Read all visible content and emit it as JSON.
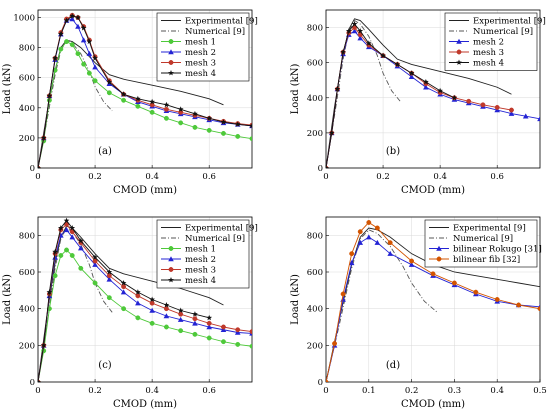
{
  "chart_data": [
    {
      "type": "line",
      "panel_label": "(a)",
      "xlabel": "CMOD (mm)",
      "ylabel": "Load (kN)",
      "xlim": [
        0,
        0.75
      ],
      "ylim": [
        0,
        1050
      ],
      "xticks": [
        "0",
        "0.2",
        "0.4",
        "0.6"
      ],
      "xtick_values": [
        0,
        0.2,
        0.4,
        0.6
      ],
      "yticks": [
        "0",
        "200",
        "400",
        "600",
        "800",
        "1000"
      ],
      "ytick_values": [
        0,
        200,
        400,
        600,
        800,
        1000
      ],
      "grid": true,
      "legend_position": "top-right",
      "series": [
        {
          "name": "Experimental [9]",
          "color": "#222222",
          "dash": "solid",
          "marker": "none",
          "x": [
            0,
            0.03,
            0.06,
            0.08,
            0.1,
            0.12,
            0.15,
            0.2,
            0.25,
            0.3,
            0.4,
            0.5,
            0.6,
            0.65
          ],
          "y": [
            0,
            350,
            650,
            800,
            850,
            840,
            800,
            700,
            620,
            590,
            550,
            510,
            460,
            420
          ]
        },
        {
          "name": "Numerical [9]",
          "color": "#555555",
          "dash": "dashdot",
          "marker": "none",
          "x": [
            0,
            0.03,
            0.06,
            0.08,
            0.1,
            0.12,
            0.15,
            0.18,
            0.2,
            0.23,
            0.26
          ],
          "y": [
            0,
            300,
            620,
            780,
            850,
            830,
            760,
            640,
            540,
            440,
            380
          ]
        },
        {
          "name": "mesh 1",
          "color": "#4ec93a",
          "dash": "solid",
          "marker": "circle",
          "x": [
            0,
            0.02,
            0.04,
            0.06,
            0.08,
            0.1,
            0.12,
            0.14,
            0.16,
            0.18,
            0.2,
            0.25,
            0.3,
            0.35,
            0.4,
            0.45,
            0.5,
            0.55,
            0.6,
            0.65,
            0.7,
            0.75
          ],
          "y": [
            0,
            180,
            450,
            650,
            790,
            840,
            820,
            760,
            690,
            630,
            580,
            500,
            450,
            410,
            370,
            330,
            300,
            270,
            250,
            230,
            210,
            195
          ]
        },
        {
          "name": "mesh 2",
          "color": "#2323d4",
          "dash": "solid",
          "marker": "triangle",
          "x": [
            0,
            0.02,
            0.04,
            0.06,
            0.08,
            0.1,
            0.12,
            0.14,
            0.16,
            0.18,
            0.2,
            0.25,
            0.3,
            0.35,
            0.4,
            0.45,
            0.5,
            0.55,
            0.6,
            0.65,
            0.7,
            0.75
          ],
          "y": [
            0,
            200,
            480,
            720,
            890,
            980,
            990,
            940,
            850,
            760,
            670,
            560,
            490,
            440,
            410,
            380,
            360,
            340,
            320,
            300,
            290,
            280
          ]
        },
        {
          "name": "mesh 3",
          "color": "#c0392b",
          "dash": "solid",
          "marker": "circle",
          "x": [
            0,
            0.02,
            0.04,
            0.06,
            0.08,
            0.1,
            0.12,
            0.14,
            0.16,
            0.18,
            0.2,
            0.25,
            0.3,
            0.35,
            0.4,
            0.45,
            0.5,
            0.55,
            0.6,
            0.65,
            0.7,
            0.75
          ],
          "y": [
            0,
            200,
            480,
            730,
            900,
            990,
            1015,
            1000,
            940,
            850,
            740,
            580,
            490,
            450,
            420,
            390,
            370,
            350,
            330,
            310,
            295,
            285
          ]
        },
        {
          "name": "mesh 4",
          "color": "#111111",
          "dash": "solid",
          "marker": "star",
          "x": [
            0,
            0.02,
            0.04,
            0.06,
            0.08,
            0.1,
            0.12,
            0.14,
            0.16,
            0.18,
            0.2,
            0.25,
            0.3,
            0.35,
            0.4,
            0.45,
            0.5,
            0.55,
            0.6,
            0.65,
            0.7,
            0.75
          ],
          "y": [
            0,
            200,
            480,
            730,
            890,
            980,
            1010,
            1000,
            930,
            840,
            730,
            570,
            490,
            460,
            440,
            420,
            390,
            360,
            330,
            305,
            290,
            280
          ]
        }
      ]
    },
    {
      "type": "line",
      "panel_label": "(b)",
      "xlabel": "CMOD (mm)",
      "ylabel": "Load (kN)",
      "xlim": [
        0,
        0.75
      ],
      "ylim": [
        0,
        900
      ],
      "xticks": [
        "0",
        "0.2",
        "0.4",
        "0.6"
      ],
      "xtick_values": [
        0,
        0.2,
        0.4,
        0.6
      ],
      "yticks": [
        "0",
        "200",
        "400",
        "600",
        "800"
      ],
      "ytick_values": [
        0,
        200,
        400,
        600,
        800
      ],
      "grid": true,
      "legend_position": "top-right",
      "series": [
        {
          "name": "Experimental [9]",
          "color": "#222222",
          "dash": "solid",
          "marker": "none",
          "x": [
            0,
            0.03,
            0.06,
            0.08,
            0.1,
            0.12,
            0.15,
            0.2,
            0.25,
            0.3,
            0.4,
            0.5,
            0.6,
            0.65
          ],
          "y": [
            0,
            350,
            650,
            790,
            850,
            840,
            790,
            700,
            620,
            590,
            550,
            510,
            460,
            420
          ]
        },
        {
          "name": "Numerical [9]",
          "color": "#555555",
          "dash": "dashdot",
          "marker": "none",
          "x": [
            0,
            0.03,
            0.06,
            0.08,
            0.1,
            0.12,
            0.15,
            0.18,
            0.2,
            0.23,
            0.26
          ],
          "y": [
            0,
            300,
            620,
            780,
            840,
            820,
            750,
            640,
            540,
            440,
            380
          ]
        },
        {
          "name": "mesh 2",
          "color": "#2323d4",
          "dash": "solid",
          "marker": "triangle",
          "x": [
            0,
            0.02,
            0.04,
            0.06,
            0.08,
            0.1,
            0.12,
            0.15,
            0.2,
            0.25,
            0.3,
            0.35,
            0.4,
            0.45,
            0.5,
            0.55,
            0.6,
            0.65,
            0.7,
            0.75
          ],
          "y": [
            0,
            200,
            450,
            650,
            760,
            780,
            740,
            690,
            640,
            580,
            520,
            460,
            420,
            390,
            370,
            350,
            330,
            310,
            295,
            280
          ]
        },
        {
          "name": "mesh 3",
          "color": "#c0392b",
          "dash": "solid",
          "marker": "circle",
          "x": [
            0,
            0.02,
            0.04,
            0.06,
            0.08,
            0.1,
            0.12,
            0.15,
            0.2,
            0.25,
            0.3,
            0.35,
            0.4,
            0.45,
            0.5,
            0.55,
            0.6,
            0.65
          ],
          "y": [
            0,
            200,
            450,
            660,
            770,
            800,
            760,
            700,
            640,
            590,
            540,
            480,
            430,
            400,
            380,
            360,
            345,
            330
          ]
        },
        {
          "name": "mesh 4",
          "color": "#111111",
          "dash": "solid",
          "marker": "star",
          "x": [
            0,
            0.02,
            0.04,
            0.06,
            0.08,
            0.1,
            0.12,
            0.15,
            0.2,
            0.25,
            0.3,
            0.35,
            0.4,
            0.45
          ],
          "y": [
            0,
            200,
            450,
            660,
            780,
            820,
            780,
            710,
            640,
            590,
            540,
            490,
            440,
            400
          ]
        }
      ]
    },
    {
      "type": "line",
      "panel_label": "(c)",
      "xlabel": "CMOD (mm)",
      "ylabel": "Load (kN)",
      "xlim": [
        0,
        0.75
      ],
      "ylim": [
        0,
        900
      ],
      "xticks": [
        "0",
        "0.2",
        "0.4",
        "0.6"
      ],
      "xtick_values": [
        0,
        0.2,
        0.4,
        0.6
      ],
      "yticks": [
        "0",
        "200",
        "400",
        "600",
        "800"
      ],
      "ytick_values": [
        0,
        200,
        400,
        600,
        800
      ],
      "grid": true,
      "legend_position": "top-right",
      "series": [
        {
          "name": "Experimental [9]",
          "color": "#222222",
          "dash": "solid",
          "marker": "none",
          "x": [
            0,
            0.03,
            0.06,
            0.08,
            0.1,
            0.12,
            0.15,
            0.2,
            0.25,
            0.3,
            0.4,
            0.5,
            0.6,
            0.65
          ],
          "y": [
            0,
            350,
            650,
            790,
            850,
            840,
            790,
            700,
            620,
            590,
            550,
            510,
            460,
            420
          ]
        },
        {
          "name": "Numerical [9]",
          "color": "#555555",
          "dash": "dashdot",
          "marker": "none",
          "x": [
            0,
            0.03,
            0.06,
            0.08,
            0.1,
            0.12,
            0.15,
            0.18,
            0.2,
            0.23,
            0.26
          ],
          "y": [
            0,
            300,
            620,
            780,
            840,
            820,
            750,
            640,
            540,
            440,
            380
          ]
        },
        {
          "name": "mesh 1",
          "color": "#4ec93a",
          "dash": "solid",
          "marker": "circle",
          "x": [
            0,
            0.02,
            0.04,
            0.06,
            0.08,
            0.1,
            0.12,
            0.15,
            0.2,
            0.25,
            0.3,
            0.35,
            0.4,
            0.45,
            0.5,
            0.55,
            0.6,
            0.65,
            0.7,
            0.75
          ],
          "y": [
            0,
            170,
            400,
            580,
            690,
            720,
            690,
            620,
            540,
            460,
            400,
            350,
            320,
            300,
            280,
            260,
            240,
            220,
            205,
            195
          ]
        },
        {
          "name": "mesh 2",
          "color": "#2323d4",
          "dash": "solid",
          "marker": "triangle",
          "x": [
            0,
            0.02,
            0.04,
            0.06,
            0.08,
            0.1,
            0.12,
            0.15,
            0.2,
            0.25,
            0.3,
            0.35,
            0.4,
            0.45,
            0.5,
            0.55,
            0.6,
            0.65,
            0.7,
            0.75
          ],
          "y": [
            0,
            200,
            470,
            680,
            800,
            830,
            790,
            730,
            640,
            560,
            490,
            430,
            390,
            360,
            340,
            320,
            300,
            285,
            270,
            265
          ]
        },
        {
          "name": "mesh 3",
          "color": "#c0392b",
          "dash": "solid",
          "marker": "circle",
          "x": [
            0,
            0.02,
            0.04,
            0.06,
            0.08,
            0.1,
            0.12,
            0.15,
            0.2,
            0.25,
            0.3,
            0.35,
            0.4,
            0.45,
            0.5,
            0.55,
            0.6,
            0.65,
            0.7,
            0.75
          ],
          "y": [
            0,
            200,
            480,
            700,
            830,
            860,
            820,
            760,
            660,
            580,
            520,
            470,
            430,
            400,
            370,
            345,
            320,
            300,
            285,
            275
          ]
        },
        {
          "name": "mesh 4",
          "color": "#111111",
          "dash": "solid",
          "marker": "star",
          "x": [
            0,
            0.02,
            0.04,
            0.06,
            0.08,
            0.1,
            0.12,
            0.15,
            0.2,
            0.25,
            0.3,
            0.35,
            0.4,
            0.45,
            0.5,
            0.55,
            0.6
          ],
          "y": [
            0,
            200,
            490,
            710,
            840,
            880,
            840,
            770,
            680,
            600,
            540,
            490,
            450,
            420,
            390,
            370,
            350
          ]
        }
      ]
    },
    {
      "type": "line",
      "panel_label": "(d)",
      "xlabel": "CMOD (mm)",
      "ylabel": "Load (kN)",
      "xlim": [
        0,
        0.5
      ],
      "ylim": [
        0,
        900
      ],
      "xticks": [
        "0",
        "0.1",
        "0.2",
        "0.3",
        "0.4",
        "0.5"
      ],
      "xtick_values": [
        0,
        0.1,
        0.2,
        0.3,
        0.4,
        0.5
      ],
      "yticks": [
        "0",
        "200",
        "400",
        "600",
        "800"
      ],
      "ytick_values": [
        0,
        200,
        400,
        600,
        800
      ],
      "grid": true,
      "legend_position": "top-right",
      "series": [
        {
          "name": "Experimental [9]",
          "color": "#222222",
          "dash": "solid",
          "marker": "none",
          "x": [
            0,
            0.03,
            0.06,
            0.08,
            0.1,
            0.12,
            0.15,
            0.2,
            0.25,
            0.3,
            0.35,
            0.4,
            0.45,
            0.5
          ],
          "y": [
            0,
            330,
            640,
            790,
            840,
            830,
            790,
            700,
            640,
            600,
            580,
            560,
            540,
            520
          ]
        },
        {
          "name": "Numerical [9]",
          "color": "#555555",
          "dash": "dashdot",
          "marker": "none",
          "x": [
            0,
            0.03,
            0.06,
            0.08,
            0.1,
            0.12,
            0.15,
            0.18,
            0.2,
            0.23,
            0.26
          ],
          "y": [
            0,
            300,
            620,
            780,
            830,
            810,
            740,
            630,
            540,
            440,
            380
          ]
        },
        {
          "name": "bilinear Rokugo [31]",
          "color": "#2323d4",
          "dash": "solid",
          "marker": "triangle",
          "x": [
            0,
            0.02,
            0.04,
            0.06,
            0.08,
            0.1,
            0.12,
            0.15,
            0.2,
            0.25,
            0.3,
            0.35,
            0.4,
            0.45,
            0.5
          ],
          "y": [
            0,
            200,
            450,
            650,
            760,
            790,
            760,
            700,
            640,
            580,
            530,
            480,
            440,
            420,
            410
          ]
        },
        {
          "name": "bilinear fib [32]",
          "color": "#d35400",
          "dash": "solid",
          "marker": "circle",
          "x": [
            0,
            0.02,
            0.04,
            0.06,
            0.08,
            0.1,
            0.12,
            0.15,
            0.2,
            0.25,
            0.3,
            0.35,
            0.4,
            0.45,
            0.5
          ],
          "y": [
            0,
            210,
            480,
            700,
            820,
            870,
            840,
            760,
            660,
            590,
            540,
            490,
            450,
            420,
            400
          ]
        }
      ]
    }
  ]
}
